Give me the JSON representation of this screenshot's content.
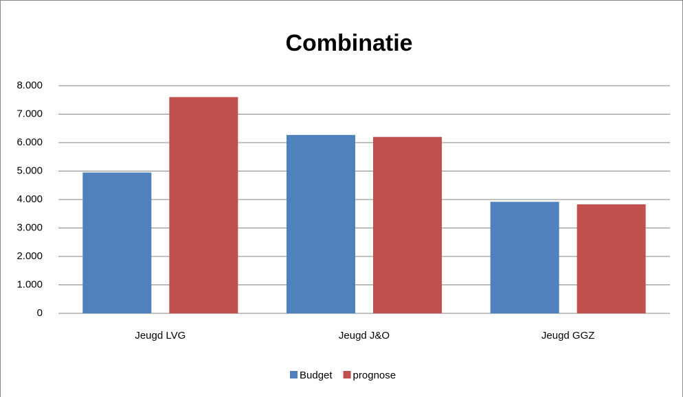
{
  "chart_data": {
    "type": "bar",
    "title": "Combinatie",
    "categories": [
      "Jeugd LVG",
      "Jeugd J&O",
      "Jeugd GGZ"
    ],
    "series": [
      {
        "name": "Budget",
        "color": "#4f81bd",
        "values": [
          4950,
          6270,
          3920
        ]
      },
      {
        "name": "prognose",
        "color": "#c0504d",
        "values": [
          7600,
          6200,
          3830
        ]
      }
    ],
    "ylim": [
      0,
      8000
    ],
    "yticks": [
      0,
      {
        "value": 1000,
        "label": "1.000"
      },
      {
        "value": 2000,
        "label": "2.000"
      },
      {
        "value": 3000,
        "label": "3.000"
      },
      {
        "value": 4000,
        "label": "4.000"
      },
      {
        "value": 5000,
        "label": "5.000"
      },
      {
        "value": 6000,
        "label": "6.000"
      },
      {
        "value": 7000,
        "label": "7.000"
      },
      {
        "value": 8000,
        "label": "8.000"
      }
    ],
    "grid": true,
    "legend": "bottom"
  }
}
